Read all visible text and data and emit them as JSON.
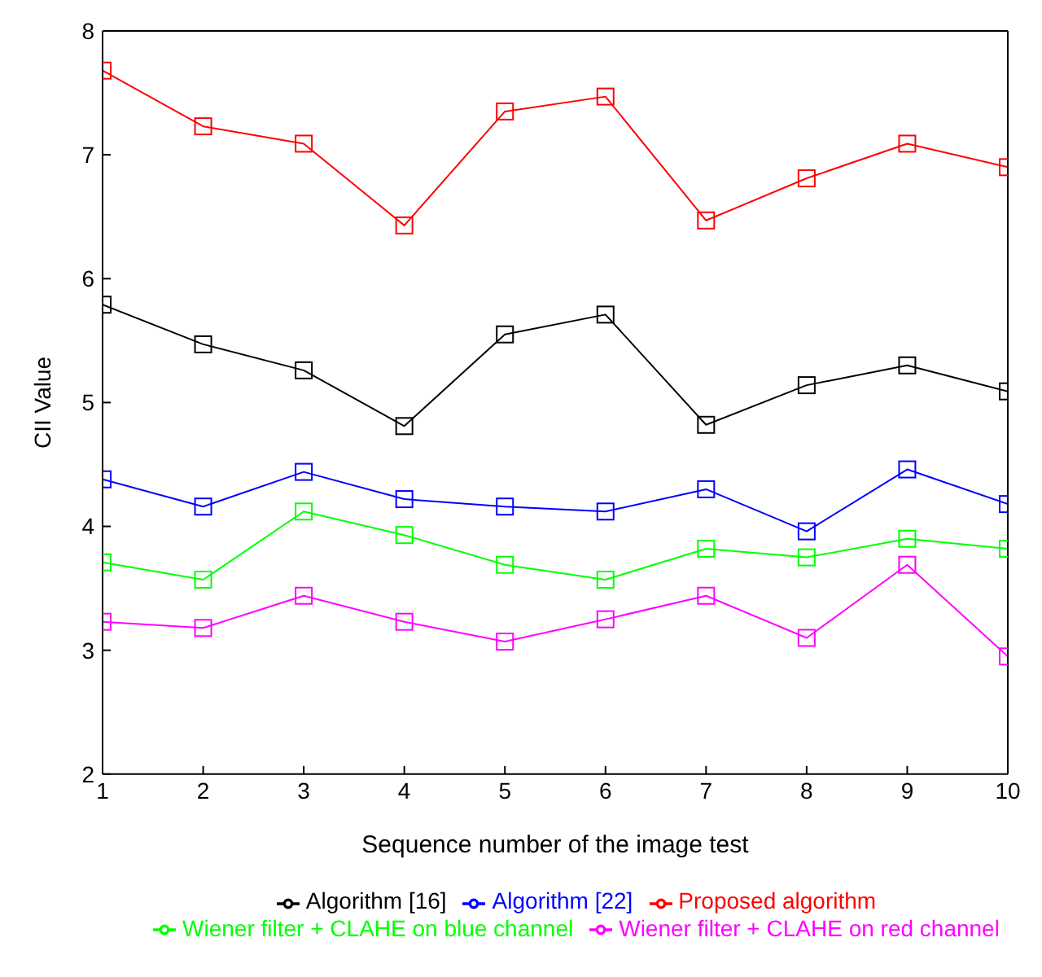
{
  "chart_data": {
    "type": "line",
    "xlabel": "Sequence number of the image test",
    "ylabel": "CII Value",
    "x": [
      1,
      2,
      3,
      4,
      5,
      6,
      7,
      8,
      9,
      10
    ],
    "xlim": [
      1,
      10
    ],
    "xticks": [
      1,
      2,
      3,
      4,
      5,
      6,
      7,
      8,
      9,
      10
    ],
    "ylim": [
      2,
      8
    ],
    "yticks": [
      2,
      3,
      4,
      5,
      6,
      7,
      8
    ],
    "grid": false,
    "legend": "bottom",
    "marker": "square",
    "line_style": "solid",
    "series": [
      {
        "name": "Algorithm [22]",
        "color": "#0000ff",
        "values": [
          4.38,
          4.16,
          4.44,
          4.22,
          4.16,
          4.12,
          4.3,
          3.96,
          4.46,
          4.18
        ]
      },
      {
        "name": "Algorithm [16]",
        "color": "#000000",
        "values": [
          5.79,
          5.47,
          5.26,
          4.81,
          5.55,
          5.71,
          4.82,
          5.14,
          5.3,
          5.09
        ]
      },
      {
        "name": "Wiener filter + CLAHE on red channel",
        "color": "#ff00ff",
        "values": [
          3.23,
          3.18,
          3.44,
          3.23,
          3.07,
          3.25,
          3.44,
          3.1,
          3.69,
          2.95
        ]
      },
      {
        "name": "Wiener filter + CLAHE on blue channel",
        "color": "#00ff00",
        "values": [
          3.71,
          3.57,
          4.12,
          3.93,
          3.69,
          3.57,
          3.82,
          3.75,
          3.9,
          3.82
        ]
      },
      {
        "name": "Proposed algorithm",
        "color": "#ff0000",
        "values": [
          7.68,
          7.23,
          7.09,
          6.43,
          7.35,
          7.47,
          6.47,
          6.81,
          7.09,
          6.9
        ]
      }
    ]
  }
}
